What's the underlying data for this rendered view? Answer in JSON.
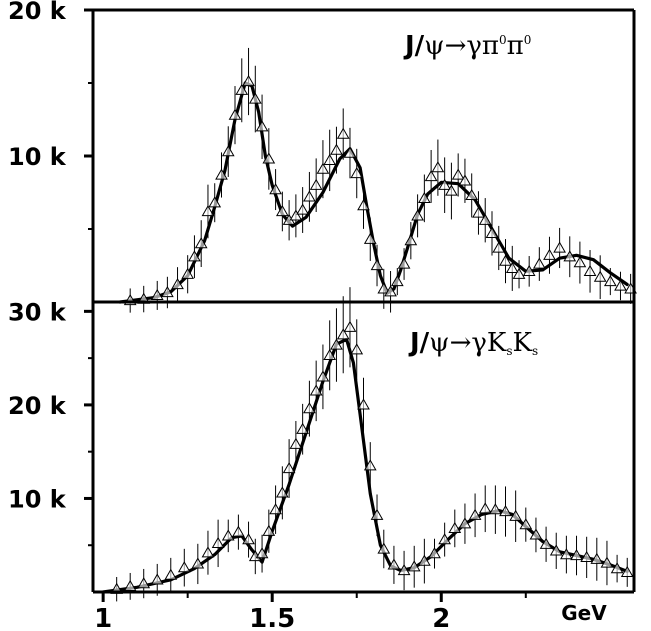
{
  "chart_data": [
    {
      "type": "scatter",
      "title": {
        "prefix": "J/",
        "psi": "ψ",
        "arrow": "→",
        "gamma": "γ",
        "p1": "π",
        "s1": "0",
        "p2": "π",
        "s2": "0"
      },
      "x_unit": "GeV",
      "xlim": [
        0.97,
        2.57
      ],
      "ylim": [
        0,
        20000
      ],
      "y_ticks": [
        {
          "value": 10000,
          "label": "10 k"
        },
        {
          "value": 20000,
          "label": "20 k"
        }
      ],
      "y_minor": [
        5000,
        15000
      ],
      "marker": "open-triangle",
      "fit": {
        "x": [
          1.05,
          1.15,
          1.2,
          1.25,
          1.3,
          1.33,
          1.36,
          1.39,
          1.42,
          1.44,
          1.46,
          1.48,
          1.5,
          1.53,
          1.56,
          1.6,
          1.65,
          1.7,
          1.73,
          1.76,
          1.78,
          1.8,
          1.82,
          1.84,
          1.86,
          1.88,
          1.9,
          1.93,
          1.96,
          2.0,
          2.05,
          2.1,
          2.15,
          2.2,
          2.25,
          2.3,
          2.35,
          2.4,
          2.45,
          2.5,
          2.55
        ],
        "y": [
          0,
          300,
          700,
          1800,
          4200,
          6500,
          9000,
          12500,
          15000,
          14800,
          13000,
          10000,
          8000,
          6000,
          5200,
          5800,
          7500,
          9800,
          10500,
          9200,
          6500,
          4000,
          1800,
          600,
          900,
          2200,
          3700,
          6000,
          7400,
          8200,
          8100,
          7000,
          5000,
          3000,
          2100,
          2200,
          3000,
          3200,
          2900,
          2000,
          1200
        ]
      },
      "points": {
        "x": [
          1.08,
          1.12,
          1.16,
          1.19,
          1.22,
          1.25,
          1.27,
          1.29,
          1.31,
          1.33,
          1.35,
          1.37,
          1.39,
          1.41,
          1.43,
          1.45,
          1.47,
          1.49,
          1.51,
          1.53,
          1.55,
          1.57,
          1.59,
          1.61,
          1.63,
          1.65,
          1.67,
          1.69,
          1.71,
          1.73,
          1.75,
          1.77,
          1.79,
          1.81,
          1.83,
          1.85,
          1.87,
          1.89,
          1.91,
          1.93,
          1.95,
          1.97,
          1.99,
          2.01,
          2.03,
          2.05,
          2.07,
          2.09,
          2.11,
          2.13,
          2.15,
          2.17,
          2.19,
          2.21,
          2.23,
          2.26,
          2.29,
          2.32,
          2.35,
          2.38,
          2.41,
          2.44,
          2.47,
          2.5,
          2.53,
          2.56
        ],
        "y": [
          100,
          200,
          450,
          650,
          1200,
          1900,
          3100,
          4000,
          6200,
          6800,
          8700,
          10300,
          12800,
          14500,
          15100,
          13900,
          12000,
          9800,
          7700,
          6200,
          5600,
          5900,
          6300,
          7200,
          8000,
          9100,
          9700,
          10400,
          11500,
          10200,
          8800,
          6600,
          4300,
          2500,
          900,
          700,
          1400,
          2600,
          4200,
          5900,
          7100,
          8600,
          9200,
          8000,
          7600,
          8700,
          8300,
          7300,
          6100,
          5600,
          4700,
          3700,
          2800,
          2300,
          1900,
          2100,
          2600,
          3200,
          3700,
          3100,
          2700,
          2100,
          1700,
          1400,
          1100,
          900
        ]
      }
    },
    {
      "type": "scatter",
      "title": {
        "prefix": "J/",
        "psi": "ψ",
        "arrow": "→",
        "gamma": "γ",
        "p1": "K",
        "s1": "s",
        "p2": "K",
        "s2": "s"
      },
      "x_unit": "GeV",
      "xlim": [
        0.97,
        2.57
      ],
      "ylim": [
        0,
        31000
      ],
      "y_ticks": [
        {
          "value": 10000,
          "label": "10 k"
        },
        {
          "value": 20000,
          "label": "20 k"
        },
        {
          "value": 30000,
          "label": "30 k"
        }
      ],
      "y_minor": [
        5000,
        15000,
        25000
      ],
      "x_ticks": [
        {
          "value": 1.0,
          "label": "1"
        },
        {
          "value": 1.5,
          "label": "1.5"
        },
        {
          "value": 2.0,
          "label": "2"
        }
      ],
      "x_unit_label": "GeV",
      "marker": "open-triangle",
      "fit": {
        "x": [
          1.0,
          1.1,
          1.2,
          1.27,
          1.33,
          1.38,
          1.41,
          1.44,
          1.47,
          1.5,
          1.55,
          1.6,
          1.65,
          1.69,
          1.72,
          1.74,
          1.76,
          1.79,
          1.82,
          1.85,
          1.88,
          1.92,
          1.97,
          2.02,
          2.07,
          2.12,
          2.17,
          2.21,
          2.25,
          2.3,
          2.35,
          2.4,
          2.45,
          2.5,
          2.55
        ],
        "y": [
          0,
          500,
          1300,
          2500,
          4000,
          5800,
          6000,
          4500,
          3200,
          6500,
          11500,
          17000,
          22500,
          26500,
          27000,
          24500,
          19000,
          10500,
          5000,
          2800,
          2300,
          2600,
          3800,
          5600,
          7300,
          8300,
          8700,
          8300,
          7000,
          5400,
          4300,
          3900,
          3500,
          2900,
          2200
        ]
      },
      "points": {
        "x": [
          1.04,
          1.08,
          1.12,
          1.16,
          1.2,
          1.24,
          1.28,
          1.31,
          1.34,
          1.37,
          1.4,
          1.43,
          1.45,
          1.47,
          1.49,
          1.51,
          1.53,
          1.55,
          1.57,
          1.59,
          1.61,
          1.63,
          1.65,
          1.67,
          1.69,
          1.71,
          1.73,
          1.75,
          1.77,
          1.79,
          1.81,
          1.83,
          1.86,
          1.89,
          1.92,
          1.95,
          1.98,
          2.01,
          2.04,
          2.07,
          2.1,
          2.13,
          2.16,
          2.19,
          2.22,
          2.25,
          2.28,
          2.31,
          2.34,
          2.37,
          2.4,
          2.43,
          2.46,
          2.49,
          2.52,
          2.55
        ],
        "y": [
          300,
          600,
          900,
          1300,
          1800,
          2600,
          3000,
          4200,
          5200,
          6000,
          6400,
          5600,
          3800,
          4100,
          6500,
          8800,
          10600,
          13200,
          15800,
          17400,
          19600,
          21500,
          23000,
          25300,
          26400,
          27500,
          28300,
          25900,
          20000,
          13500,
          8200,
          4600,
          2900,
          2300,
          2700,
          3300,
          4100,
          5600,
          6800,
          7300,
          8200,
          8900,
          8800,
          8600,
          8100,
          7200,
          6100,
          5100,
          4400,
          4000,
          3900,
          3700,
          3500,
          3100,
          2500,
          2100
        ]
      }
    }
  ]
}
